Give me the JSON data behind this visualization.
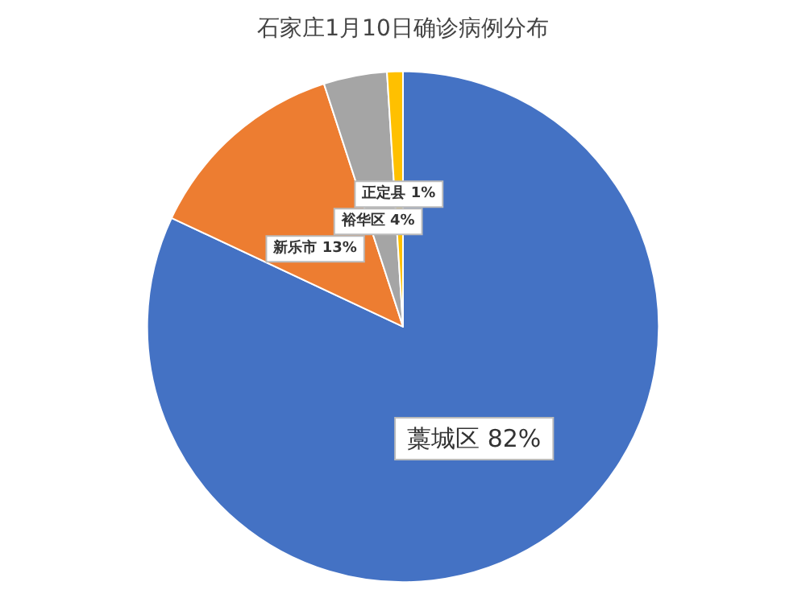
{
  "chart_data": {
    "type": "pie",
    "title": "石家庄1月10日确诊病例分布",
    "categories": [
      "藁城区",
      "新乐市",
      "裕华区",
      "正定县"
    ],
    "values": [
      82,
      13,
      4,
      1
    ],
    "value_labels": [
      "82%",
      "13%",
      "4%",
      "1%"
    ],
    "colors": [
      "#4472c4",
      "#ed7d31",
      "#a5a5a5",
      "#ffc000"
    ]
  }
}
